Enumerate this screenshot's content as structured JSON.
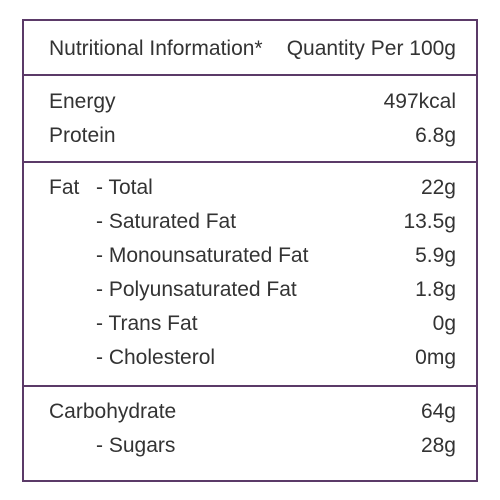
{
  "header": {
    "label": "Nutritional Information*",
    "quantity": "Quantity Per 100g"
  },
  "sections": [
    {
      "rows": [
        {
          "label": "Energy",
          "value": "497kcal"
        },
        {
          "label": "Protein",
          "value": "6.8g"
        }
      ]
    },
    {
      "rows": [
        {
          "label": "Fat",
          "sub": "- Total",
          "value": "22g"
        },
        {
          "sub": "- Saturated Fat",
          "value": "13.5g"
        },
        {
          "sub": "- Monounsaturated Fat",
          "value": "5.9g"
        },
        {
          "sub": "- Polyunsaturated Fat",
          "value": "1.8g"
        },
        {
          "sub": "- Trans Fat",
          "value": "0g"
        },
        {
          "sub": "- Cholesterol",
          "value": "0mg"
        }
      ]
    },
    {
      "rows": [
        {
          "label": "Carbohydrate",
          "value": "64g"
        },
        {
          "sub": "- Sugars",
          "value": "28g"
        }
      ]
    }
  ]
}
